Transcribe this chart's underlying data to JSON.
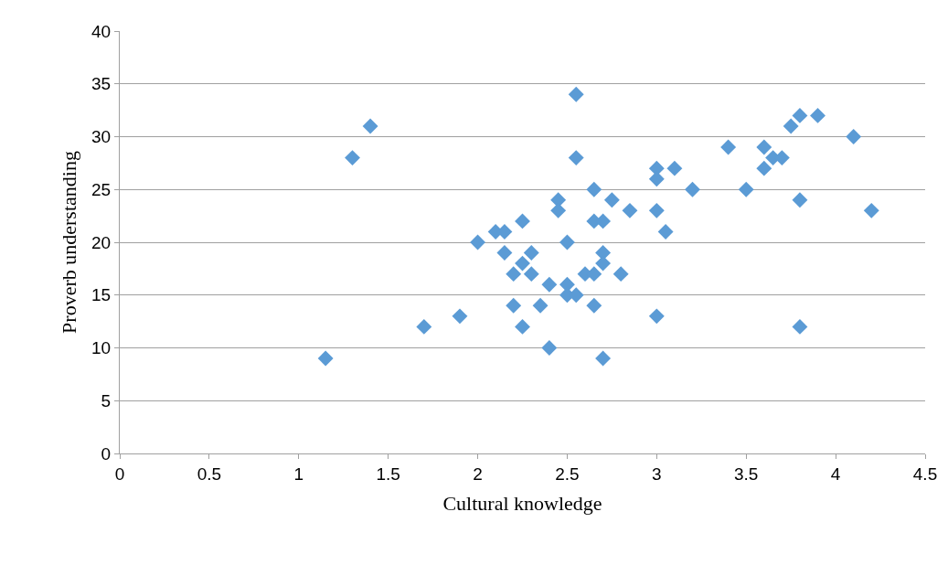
{
  "chart_data": {
    "type": "scatter",
    "xlabel": "Cultural knowledge",
    "ylabel": "Proverb understanding",
    "x": [
      1.15,
      1.3,
      1.4,
      1.7,
      1.9,
      2.0,
      2.1,
      2.15,
      2.15,
      2.2,
      2.2,
      2.25,
      2.25,
      2.25,
      2.3,
      2.3,
      2.35,
      2.4,
      2.4,
      2.45,
      2.45,
      2.5,
      2.5,
      2.5,
      2.55,
      2.55,
      2.55,
      2.6,
      2.65,
      2.65,
      2.65,
      2.65,
      2.7,
      2.7,
      2.7,
      2.7,
      2.75,
      2.8,
      2.85,
      3.0,
      3.0,
      3.0,
      3.0,
      3.05,
      3.1,
      3.2,
      3.4,
      3.5,
      3.6,
      3.6,
      3.65,
      3.7,
      3.75,
      3.8,
      3.8,
      3.8,
      3.9,
      4.1,
      4.2
    ],
    "values": [
      9,
      28,
      31,
      12,
      13,
      20,
      21,
      21,
      19,
      17,
      14,
      22,
      18,
      12,
      19,
      17,
      14,
      16,
      10,
      24,
      23,
      20,
      16,
      15,
      34,
      28,
      15,
      17,
      25,
      22,
      17,
      14,
      22,
      19,
      18,
      9,
      24,
      17,
      23,
      27,
      26,
      23,
      13,
      21,
      27,
      25,
      29,
      25,
      29,
      27,
      28,
      28,
      31,
      32,
      24,
      12,
      32,
      30,
      23
    ],
    "color": "#5b9bd5",
    "marker": "diamond",
    "xlim": [
      0,
      4.5
    ],
    "xticks": [
      0,
      0.5,
      1,
      1.5,
      2,
      2.5,
      3,
      3.5,
      4,
      4.5
    ],
    "ylim": [
      0,
      40
    ],
    "yticks": [
      0,
      5,
      10,
      15,
      20,
      25,
      30,
      35,
      40
    ],
    "grid": "y",
    "legend": false
  }
}
